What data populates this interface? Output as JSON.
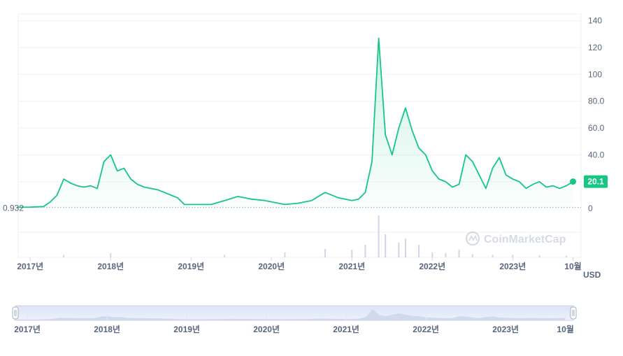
{
  "chart_data": {
    "type": "area",
    "price_unit": "USD",
    "y_ticks": [
      "140",
      "120",
      "100",
      "80.0",
      "60.0",
      "40.0",
      "0"
    ],
    "ylim": [
      -2,
      145
    ],
    "x_ticks": [
      "2017년",
      "2018년",
      "2019년",
      "2020년",
      "2021년",
      "2022년",
      "2023년",
      "10월"
    ],
    "start_value_label": "0.932",
    "start_value": 0.932,
    "current_value_label": "20.1",
    "current_value": 20.1,
    "watermark": "CoinMarketCap",
    "line_color": "#16c784",
    "price_series": {
      "x": [
        "2016-11",
        "2017-01",
        "2017-03",
        "2017-04",
        "2017-05",
        "2017-06",
        "2017-07",
        "2017-08",
        "2017-09",
        "2017-10",
        "2017-11",
        "2017-12",
        "2018-01",
        "2018-02",
        "2018-03",
        "2018-04",
        "2018-05",
        "2018-06",
        "2018-07",
        "2018-08",
        "2018-09",
        "2018-10",
        "2018-11",
        "2018-12",
        "2019-02",
        "2019-04",
        "2019-06",
        "2019-08",
        "2019-10",
        "2019-12",
        "2020-02",
        "2020-03",
        "2020-05",
        "2020-07",
        "2020-09",
        "2020-11",
        "2021-01",
        "2021-02",
        "2021-03",
        "2021-04",
        "2021-05",
        "2021-06",
        "2021-07",
        "2021-08",
        "2021-09",
        "2021-10",
        "2021-11",
        "2021-12",
        "2022-01",
        "2022-02",
        "2022-03",
        "2022-04",
        "2022-05",
        "2022-06",
        "2022-07",
        "2022-08",
        "2022-09",
        "2022-10",
        "2022-11",
        "2022-12",
        "2023-01",
        "2023-02",
        "2023-03",
        "2023-04",
        "2023-05",
        "2023-06",
        "2023-07",
        "2023-08",
        "2023-09",
        "2023-10"
      ],
      "y": [
        0.93,
        1.0,
        1.5,
        5,
        10,
        22,
        19,
        17,
        16,
        17,
        15,
        35,
        40,
        28,
        30,
        22,
        18,
        16,
        15,
        14,
        12,
        10,
        8,
        3,
        3,
        3,
        6,
        9,
        7,
        6,
        4,
        3,
        4,
        6,
        12,
        8,
        6,
        7,
        12,
        35,
        127,
        55,
        40,
        60,
        75,
        58,
        45,
        40,
        28,
        22,
        20,
        16,
        18,
        40,
        35,
        25,
        15,
        30,
        38,
        25,
        22,
        20,
        15,
        18,
        20,
        16,
        17,
        15,
        17,
        20.1
      ]
    },
    "volume_series": {
      "x": [
        "2017-06",
        "2018-01",
        "2019-06",
        "2020-03",
        "2020-09",
        "2021-01",
        "2021-03",
        "2021-05",
        "2021-06",
        "2021-08",
        "2021-09",
        "2021-11",
        "2022-01",
        "2022-03",
        "2022-05",
        "2022-07",
        "2022-10",
        "2023-01",
        "2023-05",
        "2023-09"
      ],
      "y": [
        0.06,
        0.1,
        0.06,
        0.12,
        0.2,
        0.18,
        0.3,
        1.0,
        0.55,
        0.35,
        0.45,
        0.3,
        0.12,
        0.1,
        0.18,
        0.08,
        0.06,
        0.06,
        0.05,
        0.04
      ]
    }
  }
}
